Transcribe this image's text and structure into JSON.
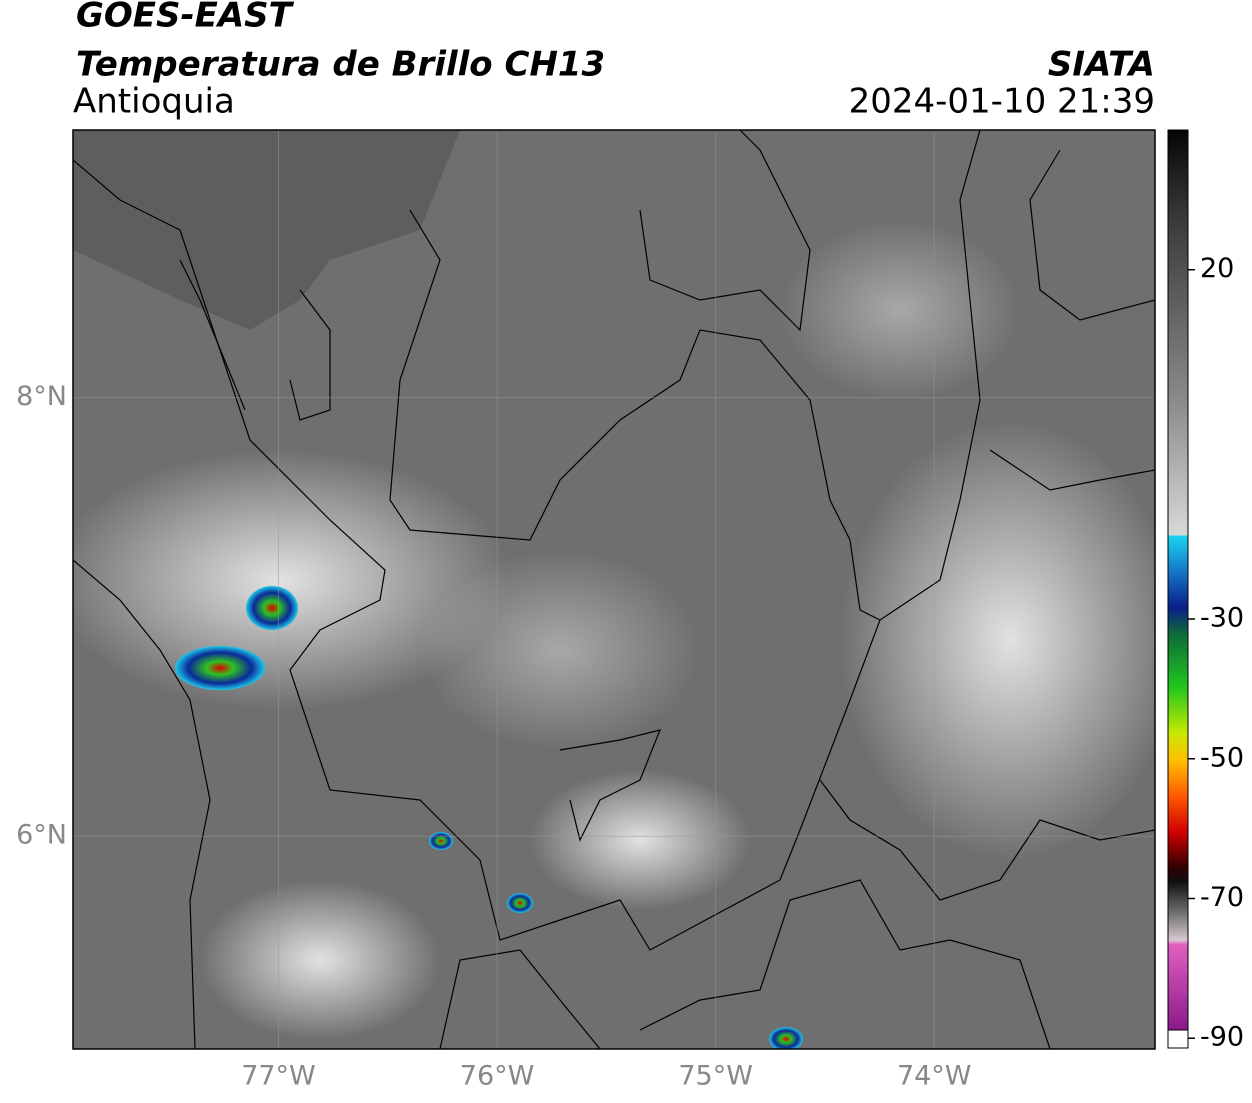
{
  "header": {
    "title": "GOES-EAST",
    "subtitle": "Temperatura de Brillo CH13",
    "region": "Antioquia",
    "source": "SIATA",
    "datetime": "2024-01-10 21:39"
  },
  "map": {
    "lon_lim": [
      -77.94,
      -72.99
    ],
    "lat_lim": [
      5.03,
      9.22
    ],
    "xticks": [
      {
        "value": -77,
        "label": "77°W"
      },
      {
        "value": -76,
        "label": "76°W"
      },
      {
        "value": -75,
        "label": "75°W"
      },
      {
        "value": -74,
        "label": "74°W"
      }
    ],
    "yticks": [
      {
        "value": 8,
        "label": "8°N"
      },
      {
        "value": 6,
        "label": "6°N"
      }
    ]
  },
  "colorbar": {
    "lim": [
      -91.4,
      40
    ],
    "ticks": [
      20,
      -30,
      -50,
      -70,
      -90
    ]
  }
}
